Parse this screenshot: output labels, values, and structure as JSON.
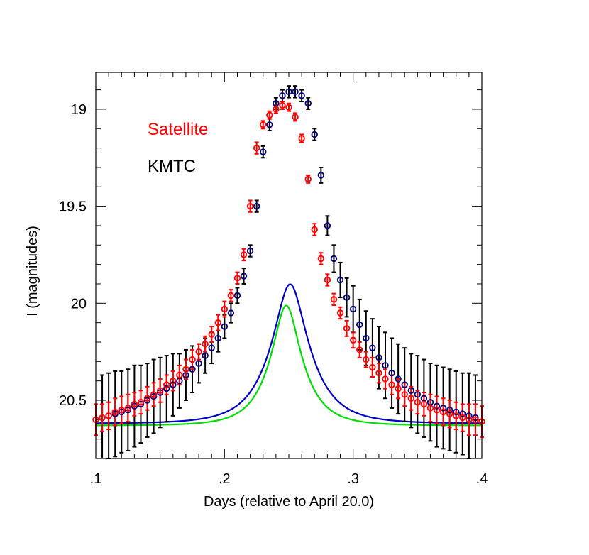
{
  "chart_data": {
    "type": "scatter",
    "xlabel": "Days (relative to April 20.0)",
    "ylabel": "I (magnitudes)",
    "xlim": [
      0.1,
      0.4
    ],
    "ylim": [
      20.8,
      18.81
    ],
    "y_inverted": true,
    "x_ticks": [
      {
        "value": 0.1,
        "label": ".1"
      },
      {
        "value": 0.2,
        "label": ".2"
      },
      {
        "value": 0.3,
        "label": ".3"
      },
      {
        "value": 0.4,
        "label": ".4"
      }
    ],
    "y_ticks": [
      {
        "value": 19.0,
        "label": "19"
      },
      {
        "value": 19.5,
        "label": "19.5"
      },
      {
        "value": 20.0,
        "label": "20"
      },
      {
        "value": 20.5,
        "label": "20.5"
      }
    ],
    "x_minor_step": 0.01,
    "y_minor_step": 0.1,
    "legend": {
      "placement": "top-left",
      "entries": [
        {
          "label": "Satellite",
          "color": "#ff0000"
        },
        {
          "label": "KMTC",
          "color": "#000000"
        }
      ]
    },
    "series": [
      {
        "name": "KMTC",
        "marker_color": "#000080",
        "errorbar_color": "#000000",
        "fit_color": "#0000cc",
        "fit": {
          "baseline": 20.62,
          "peak_time": 0.251,
          "amplitude": 0.72,
          "a": 0.03,
          "b": 0.9,
          "beta": 0.008
        },
        "x": [
          0.105,
          0.11,
          0.115,
          0.12,
          0.125,
          0.13,
          0.135,
          0.14,
          0.145,
          0.15,
          0.155,
          0.16,
          0.165,
          0.17,
          0.175,
          0.18,
          0.185,
          0.19,
          0.195,
          0.2,
          0.205,
          0.21,
          0.215,
          0.22,
          0.225,
          0.23,
          0.235,
          0.24,
          0.245,
          0.25,
          0.255,
          0.26,
          0.265,
          0.27,
          0.275,
          0.28,
          0.285,
          0.29,
          0.295,
          0.3,
          0.305,
          0.31,
          0.315,
          0.32,
          0.325,
          0.33,
          0.335,
          0.34,
          0.345,
          0.35,
          0.355,
          0.36,
          0.365,
          0.37,
          0.375,
          0.38,
          0.385,
          0.39,
          0.395
        ],
        "y": [
          20.59,
          20.58,
          20.57,
          20.56,
          20.55,
          20.53,
          20.52,
          20.5,
          20.48,
          20.46,
          20.44,
          20.42,
          20.4,
          20.37,
          20.34,
          20.31,
          20.27,
          20.23,
          20.18,
          20.12,
          20.05,
          19.96,
          19.86,
          19.73,
          19.5,
          19.22,
          19.08,
          18.97,
          18.93,
          18.91,
          18.91,
          18.93,
          18.97,
          19.13,
          19.34,
          19.6,
          19.77,
          19.88,
          19.97,
          20.03,
          20.11,
          20.18,
          20.23,
          20.28,
          20.32,
          20.36,
          20.39,
          20.42,
          20.45,
          20.47,
          20.49,
          20.51,
          20.53,
          20.54,
          20.55,
          20.56,
          20.57,
          20.58,
          20.59
        ],
        "err": [
          0.22,
          0.22,
          0.22,
          0.21,
          0.21,
          0.21,
          0.2,
          0.19,
          0.19,
          0.18,
          0.17,
          0.16,
          0.14,
          0.13,
          0.12,
          0.1,
          0.09,
          0.08,
          0.07,
          0.06,
          0.05,
          0.04,
          0.04,
          0.03,
          0.03,
          0.03,
          0.03,
          0.03,
          0.03,
          0.03,
          0.03,
          0.03,
          0.03,
          0.03,
          0.04,
          0.05,
          0.07,
          0.09,
          0.1,
          0.12,
          0.13,
          0.14,
          0.15,
          0.16,
          0.17,
          0.18,
          0.18,
          0.19,
          0.19,
          0.2,
          0.2,
          0.2,
          0.21,
          0.21,
          0.21,
          0.21,
          0.21,
          0.22,
          0.22
        ]
      },
      {
        "name": "Satellite",
        "marker_color": "#ff0000",
        "errorbar_color": "#ff0000",
        "fit_color": "#00dd00",
        "fit": {
          "baseline": 20.63,
          "peak_time": 0.248,
          "amplitude": 0.62,
          "a": 0.025,
          "b": 0.45,
          "beta": 0.006
        },
        "x": [
          0.1,
          0.105,
          0.11,
          0.115,
          0.12,
          0.125,
          0.13,
          0.135,
          0.14,
          0.145,
          0.15,
          0.155,
          0.16,
          0.165,
          0.17,
          0.175,
          0.18,
          0.185,
          0.19,
          0.195,
          0.2,
          0.205,
          0.21,
          0.215,
          0.22,
          0.225,
          0.23,
          0.235,
          0.24,
          0.245,
          0.25,
          0.255,
          0.26,
          0.265,
          0.27,
          0.275,
          0.28,
          0.285,
          0.29,
          0.295,
          0.3,
          0.305,
          0.31,
          0.315,
          0.32,
          0.325,
          0.33,
          0.335,
          0.34,
          0.345,
          0.35,
          0.355,
          0.36,
          0.365,
          0.37,
          0.375,
          0.38,
          0.385,
          0.39,
          0.395,
          0.4
        ],
        "y": [
          20.6,
          20.59,
          20.58,
          20.56,
          20.55,
          20.54,
          20.52,
          20.51,
          20.49,
          20.47,
          20.45,
          20.42,
          20.4,
          20.37,
          20.34,
          20.29,
          20.25,
          20.21,
          20.16,
          20.1,
          20.03,
          19.96,
          19.87,
          19.75,
          19.5,
          19.2,
          19.08,
          19.03,
          19.0,
          18.98,
          18.99,
          19.04,
          19.15,
          19.36,
          19.62,
          19.77,
          19.88,
          19.98,
          20.05,
          20.13,
          20.19,
          20.24,
          20.29,
          20.33,
          20.36,
          20.39,
          20.42,
          20.44,
          20.47,
          20.49,
          20.51,
          20.52,
          20.54,
          20.55,
          20.56,
          20.57,
          20.58,
          20.59,
          20.6,
          20.6,
          20.61
        ],
        "err": [
          0.08,
          0.07,
          0.07,
          0.07,
          0.07,
          0.07,
          0.06,
          0.06,
          0.06,
          0.06,
          0.06,
          0.05,
          0.05,
          0.05,
          0.05,
          0.05,
          0.04,
          0.04,
          0.04,
          0.04,
          0.04,
          0.03,
          0.03,
          0.03,
          0.03,
          0.03,
          0.02,
          0.02,
          0.02,
          0.02,
          0.02,
          0.02,
          0.02,
          0.02,
          0.03,
          0.03,
          0.03,
          0.03,
          0.03,
          0.04,
          0.04,
          0.04,
          0.04,
          0.05,
          0.05,
          0.05,
          0.05,
          0.05,
          0.06,
          0.06,
          0.06,
          0.06,
          0.07,
          0.07,
          0.07,
          0.07,
          0.07,
          0.07,
          0.08,
          0.08,
          0.08
        ]
      }
    ]
  }
}
